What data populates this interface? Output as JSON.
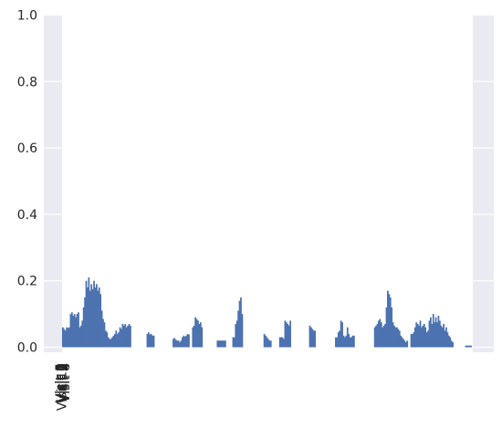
{
  "chart_data": {
    "type": "bar",
    "title": "",
    "xlabel": "",
    "ylabel": "",
    "ylim": [
      0,
      1.0
    ],
    "yticks": [
      "0.0",
      "0.2",
      "0.4",
      "0.6",
      "0.8",
      "1.0"
    ],
    "xtick_labels": [
      "Visit 1",
      "Visit 2",
      "Visit 3",
      "Visit 4",
      "Visit 5",
      "Visit 6",
      "Visit 7",
      "Visit 8",
      "Visit 9",
      "Visit 10"
    ],
    "grid": true,
    "legend": "none",
    "colors": {
      "background": "#eaeaf2",
      "bar": "#4c72b0",
      "grid": "#ffffff",
      "text": "#262626"
    },
    "segments": [
      {
        "start": 0,
        "values": [
          0.06,
          0.055,
          0.05,
          0.06,
          0.058,
          0.06,
          0.1,
          0.105,
          0.095,
          0.1,
          0.09,
          0.1,
          0.105,
          0.06,
          0.065,
          0.08,
          0.12,
          0.15,
          0.2,
          0.18,
          0.21,
          0.17,
          0.19,
          0.175,
          0.2,
          0.18,
          0.19,
          0.17,
          0.18,
          0.16,
          0.11,
          0.085,
          0.075,
          0.05,
          0.045,
          0.03,
          0.025,
          0.025,
          0.03,
          0.035,
          0.04,
          0.05,
          0.04,
          0.045,
          0.06,
          0.055,
          0.07,
          0.065,
          0.07,
          0.06,
          0.065,
          0.07,
          0.065
        ]
      },
      {
        "start": 65,
        "values": [
          0.04,
          0.045,
          0.038,
          0.04,
          0.035,
          0.035
        ]
      },
      {
        "start": 85,
        "values": [
          0.025,
          0.028,
          0.022,
          0.02,
          0.02,
          0.015,
          0.02,
          0.03,
          0.035,
          0.032,
          0.035,
          0.04,
          0.038
        ]
      },
      {
        "start": 100,
        "values": [
          0.06,
          0.065,
          0.09,
          0.085,
          0.08,
          0.07,
          0.075,
          0.06
        ]
      },
      {
        "start": 119,
        "values": [
          0.02,
          0.02,
          0.02,
          0.02,
          0.02,
          0.02,
          0.02
        ]
      },
      {
        "start": 131,
        "values": [
          0.03,
          0.03,
          0.07,
          0.08,
          0.11,
          0.14,
          0.15,
          0.1
        ]
      },
      {
        "start": 155,
        "values": [
          0.04,
          0.035,
          0.03,
          0.025,
          0.02,
          0.02
        ]
      },
      {
        "start": 167,
        "values": [
          0.03,
          0.03,
          0.03,
          0.025,
          0.08,
          0.075,
          0.07,
          0.065,
          0.08
        ]
      },
      {
        "start": 190,
        "values": [
          0.065,
          0.06,
          0.055,
          0.05,
          0.05
        ]
      },
      {
        "start": 210,
        "values": [
          0.03,
          0.03,
          0.045,
          0.05,
          0.08,
          0.075,
          0.035,
          0.03,
          0.035,
          0.06,
          0.04,
          0.03,
          0.03,
          0.035,
          0.035
        ]
      },
      {
        "start": 240,
        "values": [
          0.06,
          0.065,
          0.07,
          0.08,
          0.085,
          0.075,
          0.06,
          0.065,
          0.07,
          0.12,
          0.17,
          0.16,
          0.15,
          0.12,
          0.075,
          0.065,
          0.06,
          0.06,
          0.055,
          0.05,
          0.035,
          0.03,
          0.025,
          0.02,
          0.015,
          0.02
        ]
      },
      {
        "start": 268,
        "values": [
          0.04,
          0.04,
          0.045,
          0.06,
          0.075,
          0.07,
          0.065,
          0.08,
          0.06,
          0.065,
          0.07,
          0.06,
          0.045,
          0.05,
          0.08,
          0.09,
          0.07,
          0.1,
          0.075,
          0.09,
          0.075,
          0.095,
          0.08,
          0.065,
          0.06,
          0.07,
          0.05,
          0.06,
          0.045,
          0.035,
          0.03,
          0.02,
          0.015
        ]
      },
      {
        "start": 310,
        "values": [
          0.005,
          0.005,
          0.005,
          0.005,
          0.005
        ]
      }
    ],
    "total_slots": 316
  }
}
